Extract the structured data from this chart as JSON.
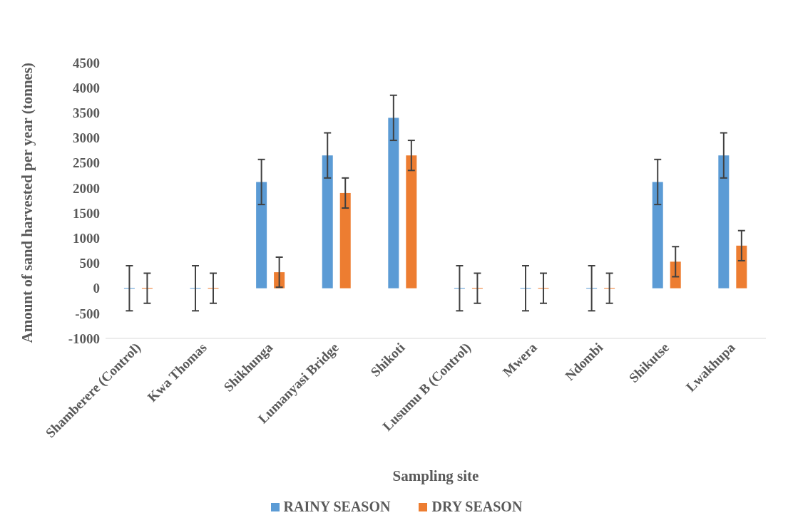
{
  "chart_data": {
    "type": "bar",
    "xlabel": "Sampling site",
    "ylabel": "Amount of sand harvested per year (tonnes)",
    "categories": [
      "Shamberere (Control)",
      "Kwa Thomas",
      "Shikhunga",
      "Lumanyasi Bridge",
      "Shikoti",
      "Lusumu B (Control)",
      "Mwera",
      "Ndombi",
      "Shikutse",
      "Lwakhupa"
    ],
    "series": [
      {
        "name": "RAINY SEASON",
        "color": "#5b9bd5",
        "values": [
          0,
          0,
          2120,
          2650,
          3400,
          0,
          0,
          0,
          2120,
          2650
        ],
        "errors": [
          450,
          450,
          450,
          450,
          450,
          450,
          450,
          450,
          450,
          450
        ]
      },
      {
        "name": "DRY SEASON",
        "color": "#ed7d31",
        "values": [
          0,
          0,
          320,
          1900,
          2650,
          0,
          0,
          0,
          530,
          850
        ],
        "errors": [
          300,
          300,
          300,
          300,
          300,
          300,
          300,
          300,
          300,
          300
        ]
      }
    ],
    "ylim": [
      -1000,
      4500
    ],
    "yticks": [
      -1000,
      -500,
      0,
      500,
      1000,
      1500,
      2000,
      2500,
      3000,
      3500,
      4000,
      4500
    ],
    "legend": "bottom"
  }
}
